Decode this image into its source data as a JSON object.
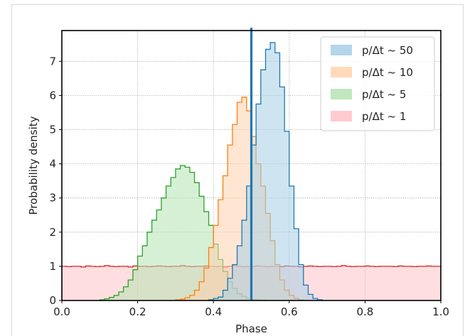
{
  "chart_data": {
    "type": "area",
    "chart_style": "stepped histogram (filled, outlined)",
    "xlabel": "Phase",
    "ylabel": "Probability density",
    "xlim": [
      0.0,
      1.0
    ],
    "ylim": [
      0,
      7.9
    ],
    "x_ticks": [
      "0.0",
      "0.2",
      "0.4",
      "0.6",
      "0.8",
      "1.0"
    ],
    "y_ticks": [
      "0",
      "1",
      "2",
      "3",
      "4",
      "5",
      "6",
      "7"
    ],
    "grid": true,
    "legend_position": "top-right",
    "vertical_line": {
      "x": 0.5,
      "color": "#1f77b4"
    },
    "bin_width": 0.0125,
    "series": [
      {
        "name": "p/Δt ~ 50",
        "legend_label": "p/Δt ~ 50",
        "edge": "#1f77b4",
        "fill": "#a6cfe6",
        "bin_start": 0.3875,
        "densities": [
          0.02,
          0.06,
          0.1,
          0.3,
          0.65,
          1.05,
          1.6,
          2.35,
          3.35,
          4.55,
          5.75,
          6.75,
          7.35,
          7.55,
          7.25,
          6.25,
          4.95,
          3.35,
          2.1,
          1.05,
          0.45,
          0.18,
          0.06,
          0.02
        ]
      },
      {
        "name": "p/Δt ~ 10",
        "legend_label": "p/Δt ~ 10",
        "edge": "#ff7f0e",
        "fill": "#ffd2ad",
        "bin_start": 0.3,
        "densities": [
          0.02,
          0.04,
          0.08,
          0.15,
          0.3,
          0.55,
          0.95,
          1.55,
          2.2,
          2.95,
          3.65,
          4.55,
          5.15,
          5.8,
          5.95,
          5.55,
          4.8,
          4.0,
          3.35,
          2.55,
          1.75,
          1.05,
          0.6,
          0.3,
          0.15,
          0.06,
          0.02
        ]
      },
      {
        "name": "p/Δt ~ 5",
        "legend_label": "p/Δt ~ 5",
        "edge": "#2ca02c",
        "fill": "#b5e3b2",
        "bin_start": 0.1,
        "densities": [
          0.02,
          0.05,
          0.09,
          0.15,
          0.25,
          0.4,
          0.6,
          0.9,
          1.3,
          1.6,
          2.0,
          2.35,
          2.65,
          3.0,
          3.35,
          3.6,
          3.85,
          3.95,
          3.9,
          3.75,
          3.45,
          3.05,
          2.6,
          2.2,
          1.65,
          1.2,
          0.85,
          0.55,
          0.35,
          0.2,
          0.12,
          0.06,
          0.03,
          0.02,
          0.01
        ]
      },
      {
        "name": "p/Δt ~ 1",
        "legend_label": "p/Δt ~ 1",
        "edge": "#d62728",
        "fill": "#ffc2c8",
        "bin_start": 0.0,
        "densities": [
          1.0,
          0.99,
          1.0,
          1.0,
          0.98,
          1.01,
          1.0,
          0.99,
          1.0,
          1.02,
          1.0,
          0.99,
          1.0,
          1.0,
          0.98,
          1.01,
          1.0,
          1.0,
          0.99,
          1.0,
          1.01,
          1.0,
          0.99,
          1.0,
          1.0,
          1.02,
          1.0,
          0.99,
          1.0,
          1.0,
          1.01,
          1.0,
          0.99,
          1.0,
          0.98,
          1.0,
          1.02,
          1.0,
          0.99,
          1.0,
          1.0,
          1.01,
          1.0,
          0.99,
          1.0,
          1.0,
          0.99,
          1.01,
          1.0,
          1.0,
          0.98,
          1.0,
          1.01,
          1.0,
          0.99,
          1.0,
          1.0,
          0.99,
          1.0,
          1.02,
          1.0,
          0.99,
          1.0,
          1.0,
          1.01,
          1.0,
          0.99,
          1.0,
          1.0,
          1.0,
          0.99,
          1.01,
          1.0,
          1.0,
          0.99,
          1.0,
          1.0,
          1.01,
          1.0,
          1.0
        ]
      }
    ]
  }
}
